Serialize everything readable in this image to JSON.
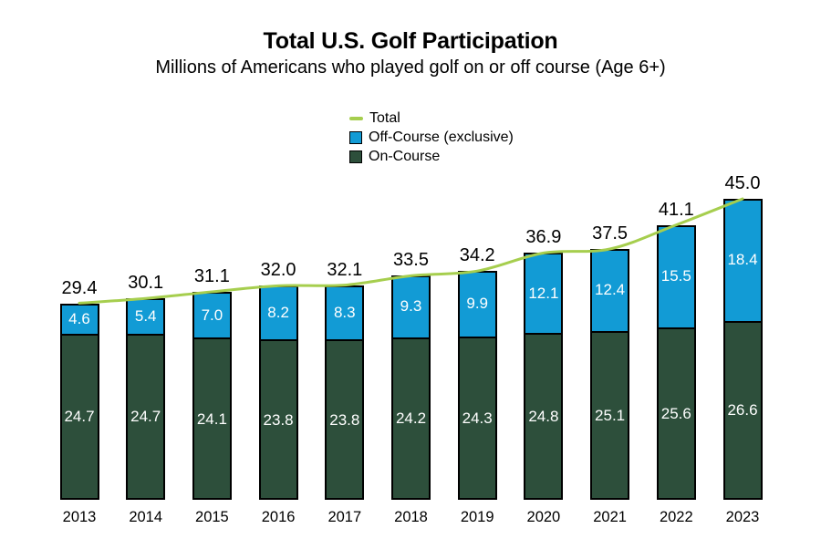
{
  "chart_data": {
    "type": "bar",
    "stacked": true,
    "title": "Total U.S. Golf Participation",
    "subtitle": "Millions of Americans who played golf on or off course (Age 6+)",
    "xlabel": "",
    "ylabel": "",
    "categories": [
      "2013",
      "2014",
      "2015",
      "2016",
      "2017",
      "2018",
      "2019",
      "2020",
      "2021",
      "2022",
      "2023"
    ],
    "series": [
      {
        "name": "On-Course",
        "color": "#2D4F3B",
        "values": [
          24.7,
          24.7,
          24.1,
          23.8,
          23.8,
          24.2,
          24.3,
          24.8,
          25.1,
          25.6,
          26.6
        ],
        "labels": [
          "24.7",
          "24.7",
          "24.1",
          "23.8",
          "23.8",
          "24.2",
          "24.3",
          "24.8",
          "25.1",
          "25.6",
          "26.6"
        ]
      },
      {
        "name": "Off-Course (exclusive)",
        "color": "#129BD5",
        "values": [
          4.6,
          5.4,
          7.0,
          8.2,
          8.3,
          9.3,
          9.9,
          12.1,
          12.4,
          15.5,
          18.4
        ],
        "labels": [
          "4.6",
          "5.4",
          "7.0",
          "8.2",
          "8.3",
          "9.3",
          "9.9",
          "12.1",
          "12.4",
          "15.5",
          "18.4"
        ]
      }
    ],
    "line_series": {
      "name": "Total",
      "color": "#A6CE4E",
      "values": [
        29.4,
        30.1,
        31.1,
        32.0,
        32.1,
        33.5,
        34.2,
        36.9,
        37.5,
        41.1,
        45.0
      ],
      "labels": [
        "29.4",
        "30.1",
        "31.1",
        "32.0",
        "32.1",
        "33.5",
        "34.2",
        "36.9",
        "37.5",
        "41.1",
        "45.0"
      ]
    },
    "ylim": [
      0,
      45
    ],
    "grid": false,
    "legend_position": "top-center"
  },
  "legend": {
    "items": [
      {
        "label": "Total",
        "swatch": "line",
        "color": "#A6CE4E"
      },
      {
        "label": "Off-Course (exclusive)",
        "swatch": "square",
        "color": "#129BD5"
      },
      {
        "label": "On-Course",
        "swatch": "square",
        "color": "#2D4F3B"
      }
    ]
  },
  "colors": {
    "background": "#FFFFFF",
    "bar_border": "#000000",
    "segment_label_text": "#FFFFFF",
    "text": "#000000"
  }
}
